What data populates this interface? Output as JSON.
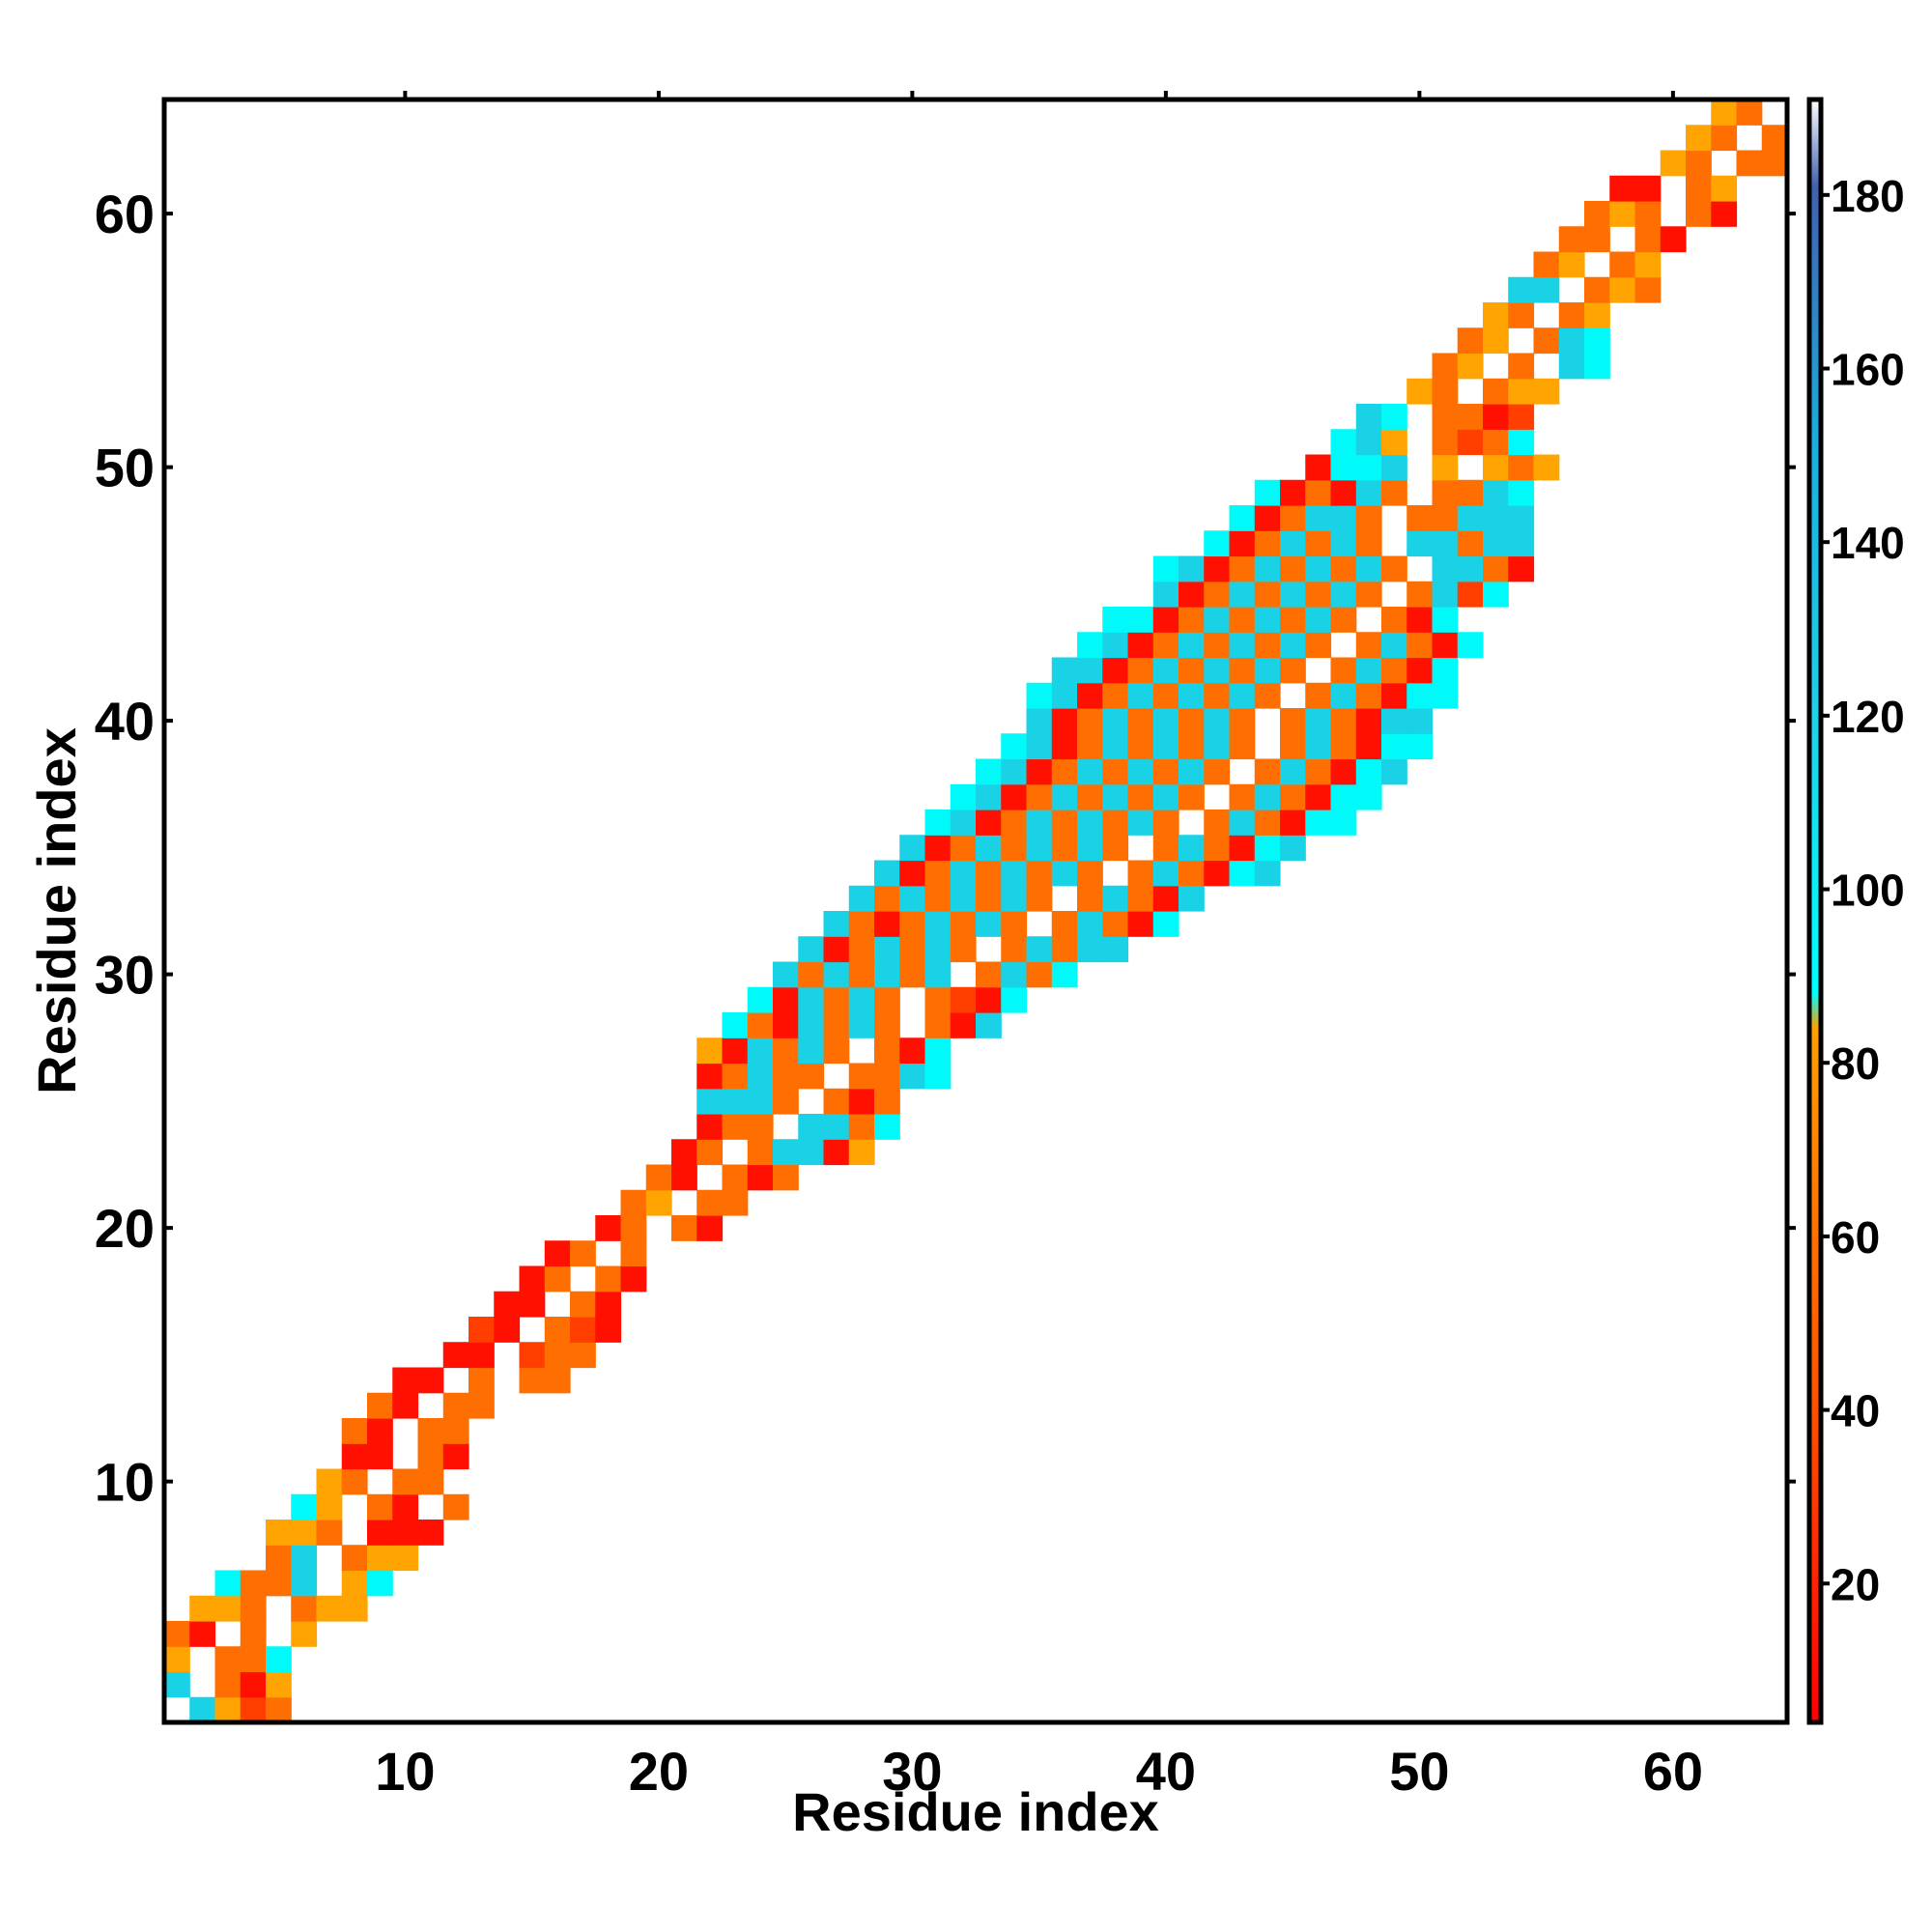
{
  "chart_data": {
    "type": "heatmap",
    "title": "",
    "xlabel": "Residue index",
    "ylabel": "Residue index",
    "xlim": [
      0.5,
      64.5
    ],
    "ylim": [
      0.5,
      64.5
    ],
    "x_ticks": [
      10,
      20,
      30,
      40,
      50,
      60
    ],
    "y_ticks": [
      10,
      20,
      30,
      40,
      50,
      60
    ],
    "x_tick_labels": [
      "10",
      "20",
      "30",
      "40",
      "50",
      "60"
    ],
    "y_tick_labels": [
      "10",
      "20",
      "30",
      "40",
      "50",
      "60"
    ],
    "grid": false,
    "colorbar": {
      "range": [
        4,
        191
      ],
      "ticks": [
        20,
        40,
        60,
        80,
        100,
        120,
        140,
        160,
        180
      ],
      "tick_labels": [
        "20",
        "40",
        "60",
        "80",
        "100",
        "120",
        "140",
        "160",
        "180"
      ],
      "stops": [
        {
          "value": 4,
          "color": "#ff0000"
        },
        {
          "value": 40,
          "color": "#ff5000"
        },
        {
          "value": 60,
          "color": "#ff7000"
        },
        {
          "value": 84,
          "color": "#ffa000"
        },
        {
          "value": 88,
          "color": "#00ffff"
        },
        {
          "value": 120,
          "color": "#20d0e8"
        },
        {
          "value": 150,
          "color": "#1ab0e0"
        },
        {
          "value": 181,
          "color": "#4060b0"
        },
        {
          "value": 191,
          "color": "#ffffff"
        }
      ]
    },
    "palette": {
      "red": "#ff1000",
      "redorange": "#ff3e00",
      "orange": "#ff6e00",
      "amber": "#ffa400",
      "cyan": "#00fafa",
      "sky": "#1ad2e6"
    },
    "cell_values": {
      "R": 22,
      "D": 35,
      "O": 56,
      "A": 75,
      "C": 95,
      "S": 128
    },
    "pattern": "A cell's x = the column, y = the band row; each row string spans columns start..start+length-1; '.' = no data (white). Matrix is symmetric with blank diagonal.",
    "band_rows": [
      {
        "y": 1,
        "start": 2,
        "cells": "SADO"
      },
      {
        "y": 2,
        "start": 1,
        "cells": "S.ORA"
      },
      {
        "y": 3,
        "start": 1,
        "cells": "A.OOC"
      },
      {
        "y": 4,
        "start": 1,
        "cells": "OR.O.A"
      },
      {
        "y": 5,
        "start": 2,
        "cells": "AAO.OAA"
      },
      {
        "y": 6,
        "start": 3,
        "cells": "COOS.AC"
      },
      {
        "y": 7,
        "start": 5,
        "cells": "OS.OAA"
      },
      {
        "y": 8,
        "start": 5,
        "cells": "AAO.RRR"
      },
      {
        "y": 9,
        "start": 6,
        "cells": "CA.OR.O"
      },
      {
        "y": 10,
        "start": 7,
        "cells": "AO.OO"
      },
      {
        "y": 11,
        "start": 8,
        "cells": "RR.OR"
      },
      {
        "y": 12,
        "start": 8,
        "cells": "OR.OO"
      },
      {
        "y": 13,
        "start": 9,
        "cells": "OR.OO"
      },
      {
        "y": 14,
        "start": 10,
        "cells": "RR.O.OO"
      },
      {
        "y": 15,
        "start": 12,
        "cells": "RR.DOO"
      },
      {
        "y": 16,
        "start": 13,
        "cells": "DR.ODR"
      },
      {
        "y": 17,
        "start": 14,
        "cells": "RR.OR"
      },
      {
        "y": 18,
        "start": 15,
        "cells": "RO.OR"
      },
      {
        "y": 19,
        "start": 16,
        "cells": "RO.O"
      },
      {
        "y": 20,
        "start": 18,
        "cells": "RO.OR"
      },
      {
        "y": 21,
        "start": 19,
        "cells": "OA.OO"
      },
      {
        "y": 22,
        "start": 20,
        "cells": "OR.ORO"
      },
      {
        "y": 23,
        "start": 21,
        "cells": "RO.OSSRA"
      },
      {
        "y": 24,
        "start": 22,
        "cells": "ROO.SSOC"
      },
      {
        "y": 25,
        "start": 22,
        "cells": "SSSO.ORO"
      },
      {
        "y": 26,
        "start": 22,
        "cells": "ROSOO.OOSC"
      },
      {
        "y": 27,
        "start": 22,
        "cells": "ARSOSO.ORC"
      },
      {
        "y": 28,
        "start": 23,
        "cells": "CORSOSO.ORS"
      },
      {
        "y": 29,
        "start": 24,
        "cells": "CRSOSO.ODRC"
      },
      {
        "y": 30,
        "start": 25,
        "cells": "SOSOSOS.OSOC"
      },
      {
        "y": 31,
        "start": 26,
        "cells": "SROSOSO.OSOSS"
      },
      {
        "y": 32,
        "start": 27,
        "cells": "SOROSOSO.OSORC"
      },
      {
        "y": 33,
        "start": 28,
        "cells": "SOSOSOSO.OSORS"
      },
      {
        "y": 34,
        "start": 29,
        "cells": "SROSOSOSO.OSORCS"
      },
      {
        "y": 35,
        "start": 30,
        "cells": "SROSOSOSO.OSORCS"
      },
      {
        "y": 36,
        "start": 31,
        "cells": "CSROSOSOSO.OSORCC"
      },
      {
        "y": 37,
        "start": 32,
        "cells": "CSROSOSOSO.OSORCC"
      },
      {
        "y": 38,
        "start": 33,
        "cells": "CSROSOSOSO.OSORCS"
      },
      {
        "y": 39,
        "start": 34,
        "cells": "CSROSOSOSO.OSORCC"
      },
      {
        "y": 40,
        "start": 35,
        "cells": "SROSOSOSO.OSORSS"
      },
      {
        "y": 41,
        "start": 35,
        "cells": "CSROSOSOSO.OSORCC"
      },
      {
        "y": 42,
        "start": 36,
        "cells": "SSROSOSOSO.OSORC"
      },
      {
        "y": 43,
        "start": 37,
        "cells": "CSROSOSOSO.OSORC"
      },
      {
        "y": 44,
        "start": 38,
        "cells": "CCROSOSOSO.ORC"
      },
      {
        "y": 45,
        "start": 40,
        "cells": "SROSOSOSO.OSDC"
      },
      {
        "y": 46,
        "start": 40,
        "cells": "CSROSOSOSO.SSOR"
      },
      {
        "y": 47,
        "start": 42,
        "cells": "CROSOSO.SSOSS"
      },
      {
        "y": 48,
        "start": 43,
        "cells": "CROSSO.OOSSS"
      },
      {
        "y": 49,
        "start": 44,
        "cells": "CRORSO.OOSC"
      },
      {
        "y": 50,
        "start": 46,
        "cells": "RCCS.A.AOA"
      },
      {
        "y": 51,
        "start": 47,
        "cells": "CSA.ODOC"
      },
      {
        "y": 52,
        "start": 48,
        "cells": "SC.OORD"
      },
      {
        "y": 53,
        "start": 50,
        "cells": "AO.OAA"
      },
      {
        "y": 54,
        "start": 51,
        "cells": "OA.O.SC"
      },
      {
        "y": 55,
        "start": 52,
        "cells": "OA.OSC"
      },
      {
        "y": 56,
        "start": 53,
        "cells": "AO.OA"
      },
      {
        "y": 57,
        "start": 54,
        "cells": "SS.OAO"
      },
      {
        "y": 58,
        "start": 55,
        "cells": "OA.OA"
      },
      {
        "y": 59,
        "start": 56,
        "cells": "OO.OR"
      },
      {
        "y": 60,
        "start": 57,
        "cells": "OAO.OR"
      },
      {
        "y": 61,
        "start": 58,
        "cells": "RR.OA"
      },
      {
        "y": 62,
        "start": 60,
        "cells": "AO.OO"
      },
      {
        "y": 63,
        "start": 61,
        "cells": "AO.O"
      },
      {
        "y": 64,
        "start": 62,
        "cells": "AO"
      }
    ]
  }
}
